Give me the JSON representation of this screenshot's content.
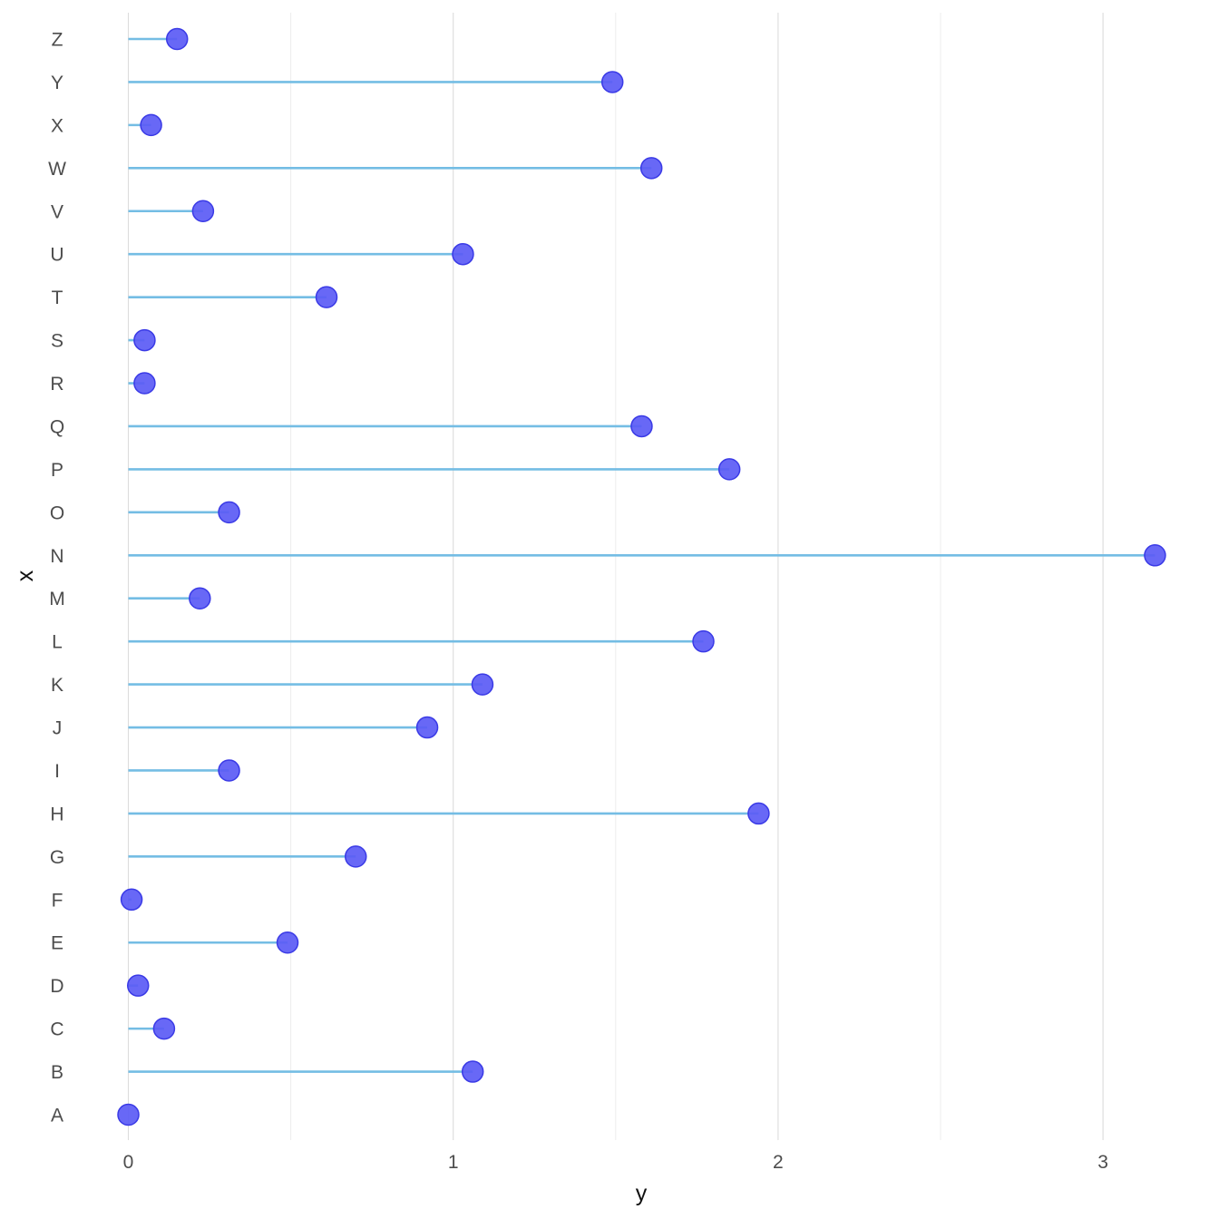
{
  "chart_data": {
    "type": "lollipop",
    "orientation": "horizontal",
    "xlabel": "y",
    "ylabel": "x",
    "xlim": [
      0,
      3.2
    ],
    "x_ticks": [
      "0",
      "1",
      "2",
      "3"
    ],
    "x_tick_values": [
      0,
      1,
      2,
      3
    ],
    "minor_grid_values": [
      0.5,
      1.5,
      2.5
    ],
    "grid": "vertical",
    "categories": [
      "A",
      "B",
      "C",
      "D",
      "E",
      "F",
      "G",
      "H",
      "I",
      "J",
      "K",
      "L",
      "M",
      "N",
      "O",
      "P",
      "Q",
      "R",
      "S",
      "T",
      "U",
      "V",
      "W",
      "X",
      "Y",
      "Z"
    ],
    "values": [
      0.0,
      1.06,
      0.11,
      0.03,
      0.49,
      0.01,
      0.7,
      1.94,
      0.31,
      0.92,
      1.09,
      1.77,
      0.22,
      3.16,
      0.31,
      1.85,
      1.58,
      0.05,
      0.05,
      0.61,
      1.03,
      0.23,
      1.61,
      0.07,
      1.49,
      0.15
    ],
    "colors": {
      "stem": "#74bde4",
      "dot": "#5b5bf5",
      "dot_stroke": "#3a3ae6",
      "grid_major": "#dcdcdc",
      "grid_minor": "#ececec",
      "tick_text": "#4d4d4d"
    }
  }
}
